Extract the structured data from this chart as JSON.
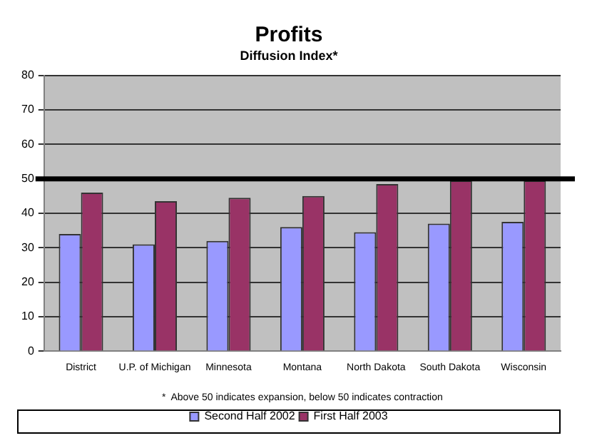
{
  "chart_data": {
    "type": "bar",
    "title": "Profits",
    "subtitle": "Diffusion Index*",
    "categories": [
      "District",
      "U.P. of Michigan",
      "Minnesota",
      "Montana",
      "North Dakota",
      "South Dakota",
      "Wisconsin"
    ],
    "series": [
      {
        "name": "Second Half 2002",
        "color": "#9999ff",
        "values": [
          34,
          31,
          32,
          36,
          34.5,
          37,
          37.5
        ]
      },
      {
        "name": "First Half 2003",
        "color": "#993366",
        "values": [
          46,
          43.5,
          44.5,
          45,
          48.5,
          49.5,
          49.5
        ]
      }
    ],
    "ylim": [
      0,
      80
    ],
    "yticks": [
      0,
      10,
      20,
      30,
      40,
      50,
      60,
      70,
      80
    ],
    "grid": "y",
    "legend": "bottom",
    "ref_lines": [
      {
        "axis": "y",
        "value": 50,
        "color": "#000000"
      }
    ],
    "annotations": [
      "*  Above 50 indicates expansion, below 50 indicates contraction"
    ]
  }
}
